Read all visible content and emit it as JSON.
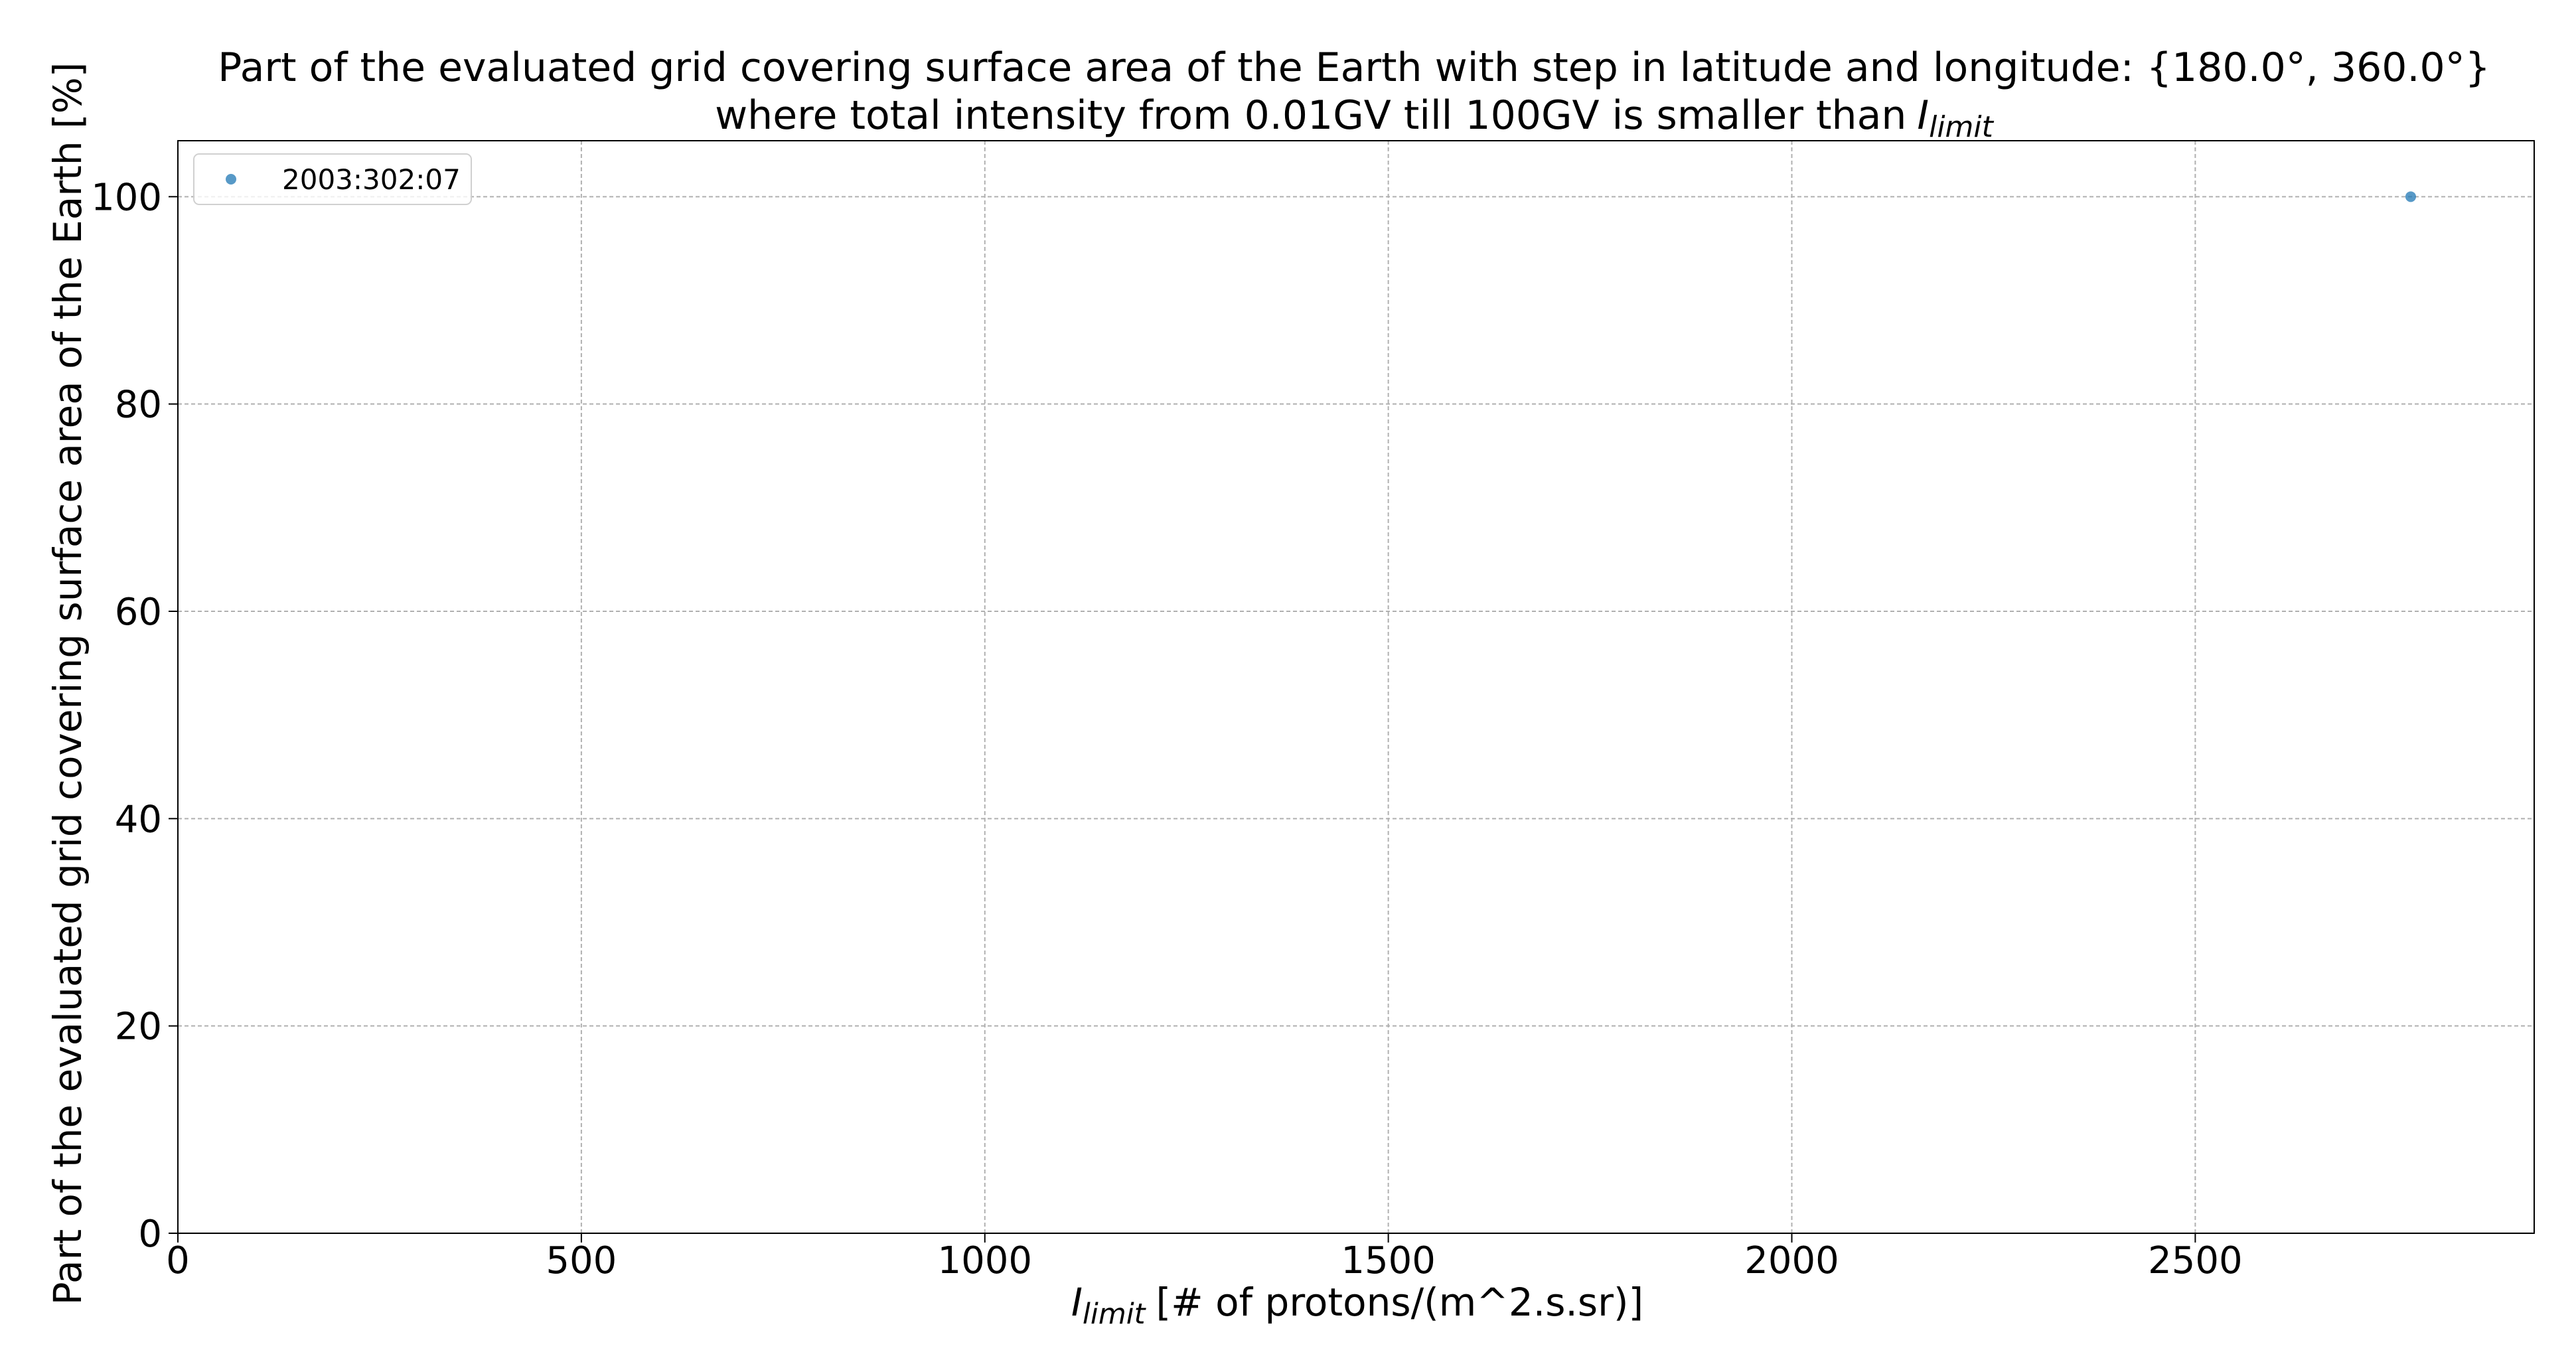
{
  "chart_data": {
    "type": "scatter",
    "title": [
      "Part of the evaluated grid covering surface area of the Earth with step in latitude and longitude: {180.0°, 360.0°}",
      "where total intensity from 0.01GV till 100GV is smaller than"
    ],
    "symbol": "I",
    "symbol_subscript": "limit",
    "xlabel": "[# of protons/(m^2.s.sr)]",
    "ylabel": "Part of the evaluated grid covering surface area of the Earth  [%]",
    "series": [
      {
        "name": "2003:302:07",
        "color": "#1f77b4",
        "x": [
          2767
        ],
        "values": [
          100
        ]
      }
    ],
    "xlim": [
      0,
      2920
    ],
    "xticks": [
      0,
      500,
      1000,
      1500,
      2000,
      2500
    ],
    "ylim": [
      0,
      105.4
    ],
    "yticks": [
      0,
      20,
      40,
      60,
      80,
      100
    ],
    "grid": true,
    "legend": "upper left"
  }
}
